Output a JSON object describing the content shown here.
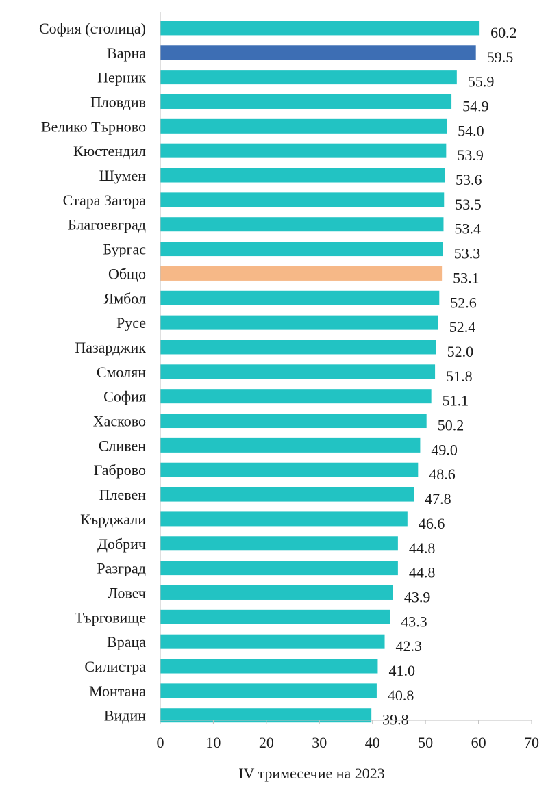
{
  "colors": {
    "default_bar": "#22c3c3",
    "highlight_bar": "#3d6eb4",
    "total_bar": "#f6b887",
    "axis": "#bfbfbf",
    "text": "#1a1a1a"
  },
  "chart_data": {
    "type": "bar",
    "orientation": "horizontal",
    "title": "",
    "xlabel": "IV тримесечие на 2023",
    "ylabel": "",
    "xlim": [
      0,
      70
    ],
    "xticks": [
      "0",
      "10",
      "20",
      "30",
      "40",
      "50",
      "60",
      "70"
    ],
    "grid": false,
    "categories": [
      "София (столица)",
      "Варна",
      "Перник",
      "Пловдив",
      "Велико Търново",
      "Кюстендил",
      "Шумен",
      "Стара Загора",
      "Благоевград",
      "Бургас",
      "Общо",
      "Ямбол",
      "Русе",
      "Пазарджик",
      "Смолян",
      "София",
      "Хасково",
      "Сливен",
      "Габрово",
      "Плевен",
      "Кърджали",
      "Добрич",
      "Разград",
      "Ловеч",
      "Търговище",
      "Враца",
      "Силистра",
      "Монтана",
      "Видин"
    ],
    "values": [
      60.2,
      59.5,
      55.9,
      54.9,
      54.0,
      53.9,
      53.6,
      53.5,
      53.4,
      53.3,
      53.1,
      52.6,
      52.4,
      52.0,
      51.8,
      51.1,
      50.2,
      49.0,
      48.6,
      47.8,
      46.6,
      44.8,
      44.8,
      43.9,
      43.3,
      42.3,
      41.0,
      40.8,
      39.8
    ],
    "value_labels": [
      "60.2",
      "59.5",
      "55.9",
      "54.9",
      "54.0",
      "53.9",
      "53.6",
      "53.5",
      "53.4",
      "53.3",
      "53.1",
      "52.6",
      "52.4",
      "52.0",
      "51.8",
      "51.1",
      "50.2",
      "49.0",
      "48.6",
      "47.8",
      "46.6",
      "44.8",
      "44.8",
      "43.9",
      "43.3",
      "42.3",
      "41.0",
      "40.8",
      "39.8"
    ],
    "highlight": {
      "Варна": "highlight_bar",
      "Общо": "total_bar"
    }
  }
}
